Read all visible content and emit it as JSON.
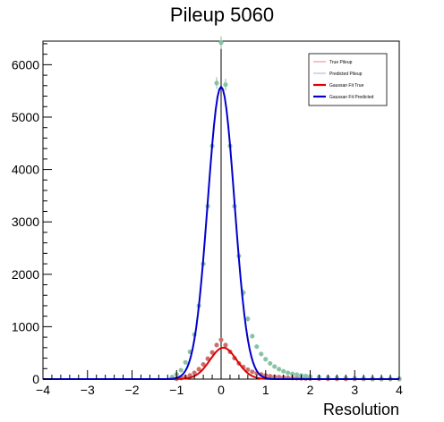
{
  "chart_data": {
    "type": "line",
    "title": "Pileup 5060",
    "xlabel": "Resolution",
    "ylabel": "",
    "xlim": [
      -4,
      4
    ],
    "ylim": [
      0,
      6450
    ],
    "x_ticks": [
      -4,
      -3,
      -2,
      -1,
      0,
      1,
      2,
      3,
      4
    ],
    "x_tick_labels": [
      "−4",
      "−3",
      "−2",
      "−1",
      "0",
      "1",
      "2",
      "3",
      "4"
    ],
    "y_ticks": [
      0,
      1000,
      2000,
      3000,
      4000,
      5000,
      6000
    ],
    "y_tick_labels": [
      "0",
      "1000",
      "2000",
      "3000",
      "4000",
      "5000",
      "6000"
    ],
    "legend": {
      "position": "top-right",
      "entries": [
        {
          "label": "True Pileup",
          "color": "#e26a6a",
          "style": "thin"
        },
        {
          "label": "Predicted Pileup",
          "color": "#7fa6c9",
          "style": "thin"
        },
        {
          "label": "Gaussan Fit True",
          "color": "#e00000",
          "style": "thick"
        },
        {
          "label": "Gaussan Fit Predicted",
          "color": "#0000cc",
          "style": "thick"
        }
      ]
    },
    "series": [
      {
        "name": "True Pileup",
        "kind": "points",
        "color": "#c86464",
        "x": [
          -1.0,
          -0.9,
          -0.8,
          -0.7,
          -0.6,
          -0.5,
          -0.4,
          -0.3,
          -0.2,
          -0.1,
          0.0,
          0.1,
          0.2,
          0.3,
          0.4,
          0.5,
          0.6,
          0.7,
          0.8,
          0.9,
          1.0,
          1.1,
          1.2,
          1.3,
          1.4,
          1.5,
          1.6,
          1.7,
          1.8,
          1.9,
          2.0,
          2.2,
          2.4,
          2.6,
          2.8,
          3.0,
          3.2,
          3.4,
          3.6,
          3.8,
          4.0
        ],
        "y": [
          5,
          20,
          40,
          70,
          120,
          190,
          280,
          390,
          510,
          650,
          750,
          650,
          520,
          400,
          300,
          230,
          180,
          140,
          110,
          90,
          70,
          55,
          45,
          38,
          30,
          25,
          20,
          18,
          15,
          12,
          10,
          8,
          6,
          5,
          4,
          3,
          3,
          2,
          2,
          2,
          2
        ]
      },
      {
        "name": "Predicted Pileup",
        "kind": "points",
        "color": "#7fbf9f",
        "x": [
          -1.1,
          -1.0,
          -0.9,
          -0.8,
          -0.7,
          -0.6,
          -0.5,
          -0.4,
          -0.3,
          -0.2,
          -0.1,
          0.0,
          0.1,
          0.2,
          0.3,
          0.4,
          0.5,
          0.6,
          0.7,
          0.8,
          0.9,
          1.0,
          1.1,
          1.2,
          1.3,
          1.4,
          1.5,
          1.6,
          1.7,
          1.8,
          1.9,
          2.0,
          2.2,
          2.4,
          2.6,
          2.8,
          3.0,
          3.2,
          3.4,
          3.6,
          3.8,
          4.0
        ],
        "y": [
          40,
          90,
          170,
          320,
          520,
          850,
          1400,
          2200,
          3300,
          4450,
          5650,
          6420,
          5620,
          4450,
          3300,
          2350,
          1650,
          1150,
          820,
          620,
          480,
          380,
          300,
          240,
          190,
          150,
          120,
          100,
          85,
          70,
          60,
          50,
          40,
          32,
          26,
          22,
          18,
          15,
          12,
          10,
          8,
          8
        ]
      },
      {
        "name": "Gaussan Fit True",
        "kind": "gaussian",
        "color": "#e00000",
        "amplitude": 600,
        "mean": 0.05,
        "sigma": 0.3,
        "range": [
          -1.0,
          1.0
        ]
      },
      {
        "name": "Gaussan Fit Predicted",
        "kind": "gaussian",
        "color": "#0000cc",
        "amplitude": 5580,
        "mean": 0.0,
        "sigma": 0.3,
        "range": [
          -1.0,
          1.0
        ]
      }
    ]
  }
}
